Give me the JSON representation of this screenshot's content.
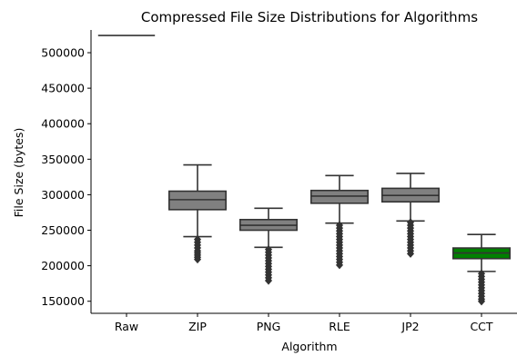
{
  "chart_data": {
    "type": "box",
    "title": "Compressed File Size Distributions for Algorithms",
    "xlabel": "Algorithm",
    "ylabel": "File Size (bytes)",
    "ylim": [
      133000,
      532000
    ],
    "yticks": [
      {
        "value": 150000,
        "label": "150000"
      },
      {
        "value": 200000,
        "label": "200000"
      },
      {
        "value": 250000,
        "label": "250000"
      },
      {
        "value": 300000,
        "label": "300000"
      },
      {
        "value": 350000,
        "label": "350000"
      },
      {
        "value": 400000,
        "label": "400000"
      },
      {
        "value": 450000,
        "label": "450000"
      },
      {
        "value": 500000,
        "label": "500000"
      }
    ],
    "categories": [
      "Raw",
      "ZIP",
      "PNG",
      "RLE",
      "JP2",
      "CCT"
    ],
    "colors": [
      "#808080",
      "#808080",
      "#808080",
      "#808080",
      "#808080",
      "#008000"
    ],
    "series": [
      {
        "name": "Raw",
        "min": 524300,
        "q1": 524300,
        "median": 524300,
        "q3": 524300,
        "max": 524300,
        "outliers": []
      },
      {
        "name": "ZIP",
        "min": 241000,
        "q1": 279000,
        "median": 293000,
        "q3": 305000,
        "max": 342000,
        "outliers": [
          237000,
          233000,
          229000,
          225000,
          221000,
          218000,
          215000,
          212000,
          209000
        ]
      },
      {
        "name": "PNG",
        "min": 226000,
        "q1": 250000,
        "median": 257000,
        "q3": 265000,
        "max": 281000,
        "outliers": [
          223000,
          219000,
          215000,
          211000,
          207000,
          203000,
          199000,
          195000,
          191000,
          187000,
          183000,
          179000
        ]
      },
      {
        "name": "RLE",
        "min": 260000,
        "q1": 288000,
        "median": 298000,
        "q3": 306000,
        "max": 327000,
        "outliers": [
          257000,
          253000,
          249000,
          245000,
          241000,
          237000,
          233000,
          229000,
          225000,
          221000,
          217000,
          213000,
          209000,
          205000,
          201000
        ]
      },
      {
        "name": "JP2",
        "min": 263000,
        "q1": 290000,
        "median": 299000,
        "q3": 309000,
        "max": 330000,
        "outliers": [
          261000,
          257000,
          253000,
          249000,
          245000,
          241000,
          237000,
          233000,
          229000,
          225000,
          221000,
          217000
        ]
      },
      {
        "name": "CCT",
        "min": 192000,
        "q1": 210000,
        "median": 218000,
        "q3": 225000,
        "max": 244000,
        "outliers": [
          189000,
          185000,
          181000,
          177000,
          173000,
          169000,
          165000,
          161000,
          157000,
          153000,
          150000
        ]
      }
    ]
  }
}
